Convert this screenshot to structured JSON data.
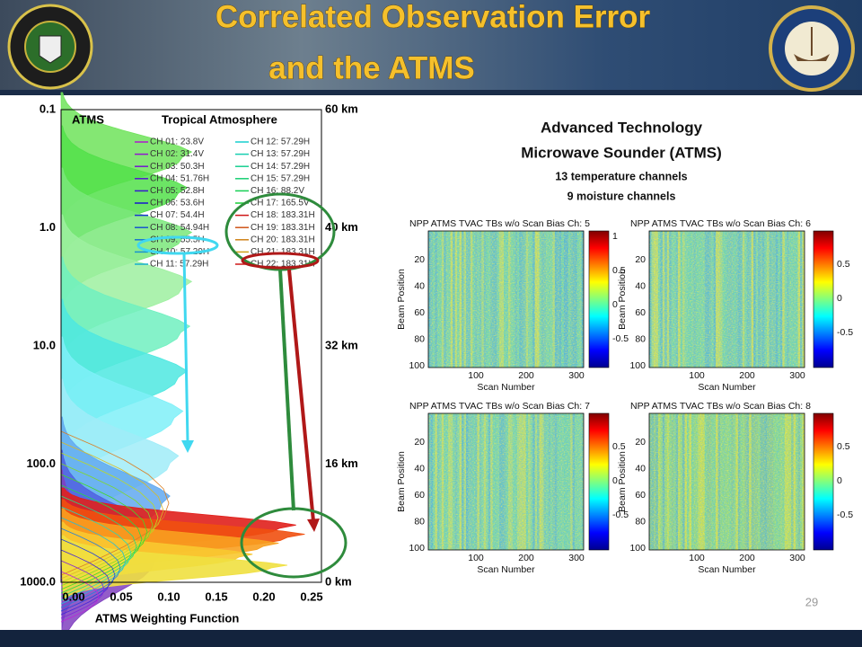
{
  "header": {
    "title_line1": "Correlated Observation Error",
    "title_line2": "and the ATMS"
  },
  "left_chart": {
    "label": "ATMS",
    "title": "Tropical Atmosphere",
    "legend": [
      "CH 01: 23.8V",
      "CH 02: 31.4V",
      "CH 03: 50.3H",
      "CH 04: 51.76H",
      "CH 05: 52.8H",
      "CH 06: 53.6H",
      "CH 07: 54.4H",
      "CH 08: 54.94H",
      "CH 09: 55.5H",
      "CH 10: 57.29H",
      "CH 11: 57.29H",
      "CH 12: 57.29H",
      "CH 13: 57.29H",
      "CH 14: 57.29H",
      "CH 15: 57.29H",
      "CH 16: 88.2V",
      "CH 17: 165.5V",
      "CH 18: 183.31H",
      "CH 19: 183.31H",
      "CH 20: 183.31H",
      "CH 21: 183.31H",
      "CH 22: 183.31H"
    ],
    "pressure_ticks": [
      "0.1",
      "1.0",
      "10.0",
      "100.0",
      "1000.0"
    ],
    "height_ticks": [
      "60 km",
      "40 km",
      "32 km",
      "16 km",
      "0 km"
    ],
    "x_ticks": [
      "0.00",
      "0.05",
      "0.10",
      "0.15",
      "0.20",
      "0.25"
    ],
    "x_label": "ATMS Weighting Function"
  },
  "right": {
    "title_line1": "Advanced Technology",
    "title_line2": "Microwave Sounder (ATMS)",
    "line3": "13 temperature channels",
    "line4": "9 moisture channels"
  },
  "panels": [
    {
      "title": "NPP ATMS TVAC TBs w/o Scan Bias Ch: 5",
      "y_label": "Beam Position",
      "x_label": "Scan Number",
      "y_ticks": [
        "20",
        "40",
        "60",
        "80",
        "100"
      ],
      "x_ticks": [
        "100",
        "200",
        "300"
      ],
      "colorbar_ticks": [
        "1",
        "0.5",
        "0",
        "-0.5"
      ]
    },
    {
      "title": "NPP ATMS TVAC TBs w/o Scan Bias Ch: 6",
      "y_label": "Beam Position",
      "x_label": "Scan Number",
      "y_ticks": [
        "20",
        "40",
        "60",
        "80",
        "100"
      ],
      "x_ticks": [
        "100",
        "200",
        "300"
      ],
      "colorbar_ticks": [
        "0.5",
        "0",
        "-0.5"
      ]
    },
    {
      "title": "NPP ATMS TVAC TBs w/o Scan Bias Ch: 7",
      "y_label": "Beam Position",
      "x_label": "Scan Number",
      "y_ticks": [
        "20",
        "40",
        "60",
        "80",
        "100"
      ],
      "x_ticks": [
        "100",
        "200",
        "300"
      ],
      "colorbar_ticks": [
        "0.5",
        "0",
        "-0.5"
      ]
    },
    {
      "title": "NPP ATMS TVAC TBs w/o Scan Bias Ch: 8",
      "y_label": "Beam Position",
      "x_label": "Scan Number",
      "y_ticks": [
        "20",
        "40",
        "60",
        "80",
        "100"
      ],
      "x_ticks": [
        "100",
        "200",
        "300"
      ],
      "colorbar_ticks": [
        "0.5",
        "0",
        "-0.5"
      ]
    }
  ],
  "page_number": "29"
}
